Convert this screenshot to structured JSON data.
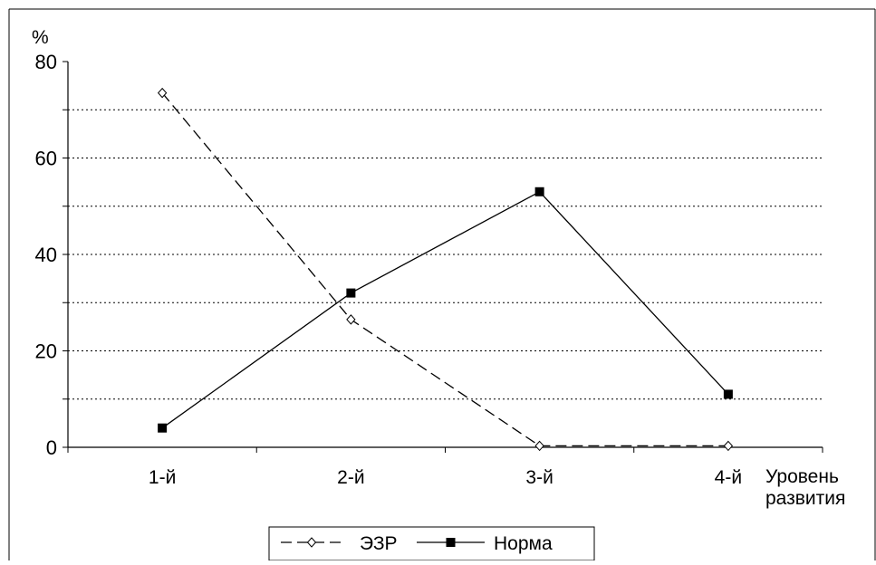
{
  "chart_data": {
    "type": "line",
    "categories": [
      "1-й",
      "2-й",
      "3-й",
      "4-й"
    ],
    "series": [
      {
        "name": "ЭЗР",
        "values": [
          73.5,
          26.5,
          0.3,
          0.3
        ],
        "line_style": "dashed",
        "marker": "diamond-open",
        "color": "#000000"
      },
      {
        "name": "Норма",
        "values": [
          4,
          32,
          53,
          11
        ],
        "line_style": "solid",
        "marker": "square-filled",
        "color": "#000000"
      }
    ],
    "ylabel": "%",
    "xlabel": [
      "Уровень",
      "развития"
    ],
    "ylim": [
      0,
      80
    ],
    "y_ticks": [
      "0",
      "20",
      "40",
      "60",
      "80"
    ],
    "grid": "dotted horizontal every 10",
    "legend_position": "bottom-center"
  }
}
